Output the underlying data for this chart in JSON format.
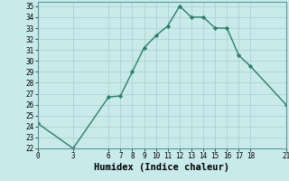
{
  "x": [
    0,
    3,
    6,
    7,
    8,
    9,
    10,
    11,
    12,
    13,
    14,
    15,
    16,
    17,
    18,
    21
  ],
  "y": [
    24.3,
    22.0,
    26.7,
    26.8,
    29.0,
    31.2,
    32.3,
    33.2,
    35.0,
    34.0,
    34.0,
    33.0,
    33.0,
    30.5,
    29.5,
    26.0
  ],
  "line_color": "#2e7d6e",
  "marker": "D",
  "marker_size": 2.2,
  "bg_color": "#c8eaea",
  "grid_color": "#aad4d4",
  "xlabel": "Humidex (Indice chaleur)",
  "xlim": [
    0,
    21
  ],
  "ylim": [
    22,
    35.4
  ],
  "xticks": [
    0,
    3,
    6,
    7,
    8,
    9,
    10,
    11,
    12,
    13,
    14,
    15,
    16,
    17,
    18,
    21
  ],
  "yticks": [
    22,
    23,
    24,
    25,
    26,
    27,
    28,
    29,
    30,
    31,
    32,
    33,
    34,
    35
  ],
  "tick_fontsize": 5.5,
  "xlabel_fontsize": 7.5,
  "line_width": 1.0
}
